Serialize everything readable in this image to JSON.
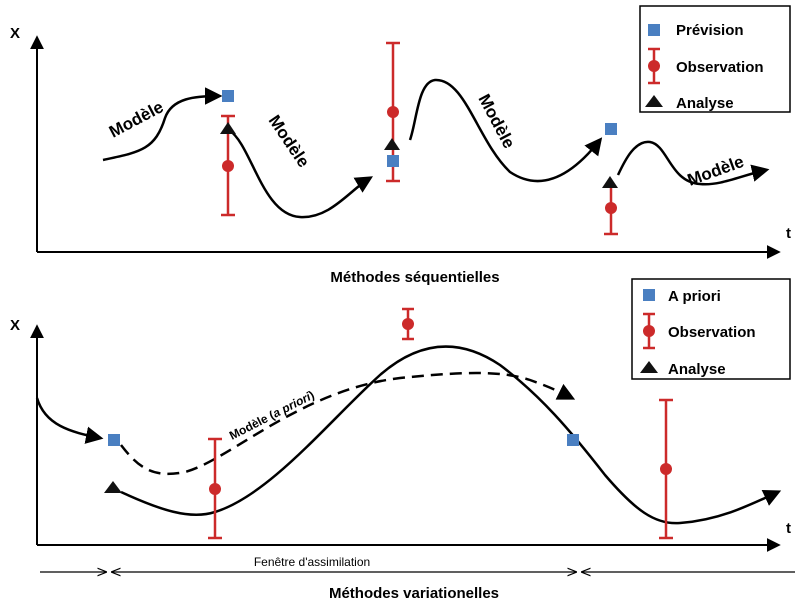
{
  "top_panel": {
    "y_axis_label": "X",
    "x_axis_label": "t",
    "title": "Méthodes séquentielles",
    "model_labels": [
      "Modèle",
      "Modèle",
      "Modèle",
      "Modèle"
    ],
    "legend": [
      {
        "label": "Prévision",
        "marker": "square",
        "color": "#4a7fc1"
      },
      {
        "label": "Observation",
        "marker": "errorbar-circle",
        "color": "#cc2a2a"
      },
      {
        "label": "Analyse",
        "marker": "triangle",
        "color": "#111111"
      }
    ]
  },
  "bottom_panel": {
    "y_axis_label": "X",
    "x_axis_label": "t",
    "title": "Méthodes variationelles",
    "model_label_prefix": "Modèle (",
    "model_label_italic": "a priori",
    "model_label_suffix": ")",
    "window_label": "Fenêtre d'assimilation",
    "legend": [
      {
        "label": "A priori",
        "marker": "square",
        "color": "#4a7fc1"
      },
      {
        "label": "Observation",
        "marker": "errorbar-circle",
        "color": "#cc2a2a"
      },
      {
        "label": "Analyse",
        "marker": "triangle",
        "color": "#111111"
      }
    ]
  },
  "colors": {
    "forecast": "#4a7fc1",
    "observation": "#cc2a2a",
    "analysis": "#111111",
    "axis": "#000000"
  }
}
